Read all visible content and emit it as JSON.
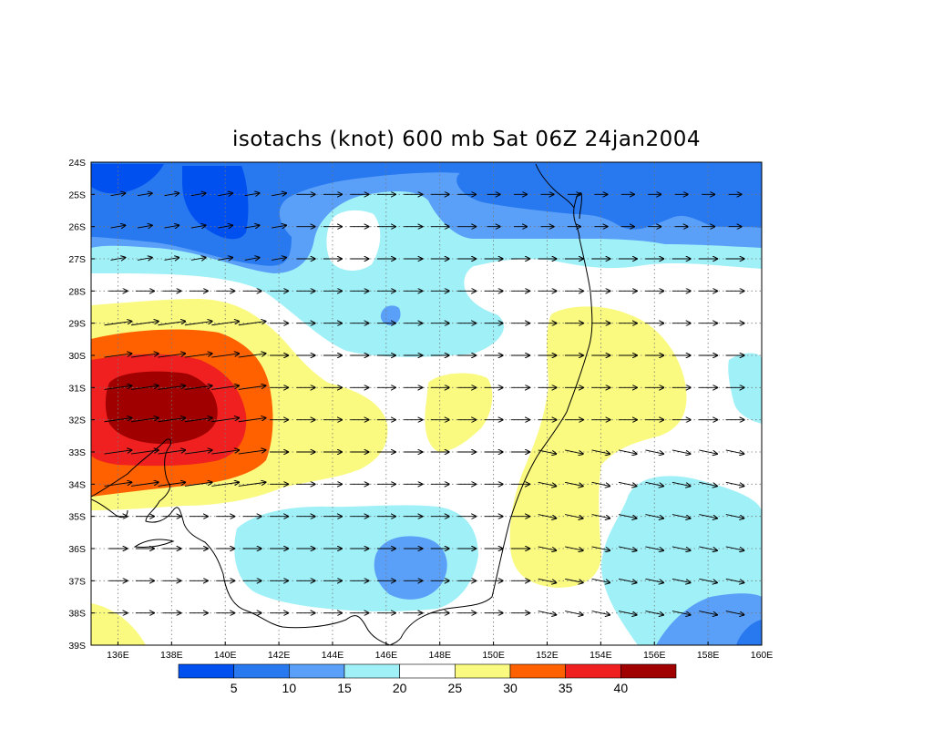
{
  "title": "isotachs (knot) 600 mb Sat 06Z 24jan2004",
  "map": {
    "lon_range": [
      135,
      160
    ],
    "lat_range": [
      -39,
      -24
    ],
    "lon_ticks": [
      "136E",
      "138E",
      "140E",
      "142E",
      "144E",
      "146E",
      "148E",
      "150E",
      "152E",
      "154E",
      "156E",
      "158E",
      "160E"
    ],
    "lat_ticks": [
      "24S",
      "25S",
      "26S",
      "27S",
      "28S",
      "29S",
      "30S",
      "31S",
      "32S",
      "33S",
      "34S",
      "35S",
      "36S",
      "37S",
      "38S",
      "39S"
    ],
    "grid": "dotted",
    "vectors": "wind arrows, predominantly westerly, every 1 degree"
  },
  "colorbar": {
    "labels": [
      "5",
      "10",
      "15",
      "20",
      "25",
      "30",
      "35",
      "40"
    ],
    "colors": [
      "#0050f0",
      "#2878f0",
      "#5aa0f8",
      "#a0f0f8",
      "#ffffff",
      "#fafa80",
      "#ff6000",
      "#f02020",
      "#a00000"
    ]
  },
  "shading_levels_knots": [
    5,
    10,
    15,
    20,
    25,
    30,
    35,
    40
  ]
}
